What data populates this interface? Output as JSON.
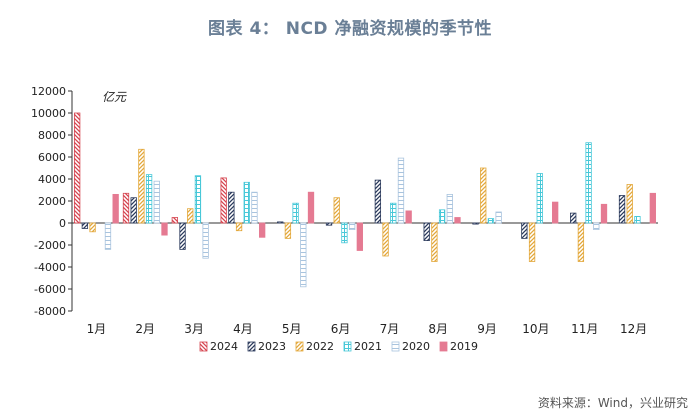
{
  "title": "图表 4：  NCD 净融资规模的季节性",
  "source": "资料来源：Wind，兴业研究",
  "chart_data": {
    "type": "bar",
    "unit_label": "亿元",
    "categories": [
      "1月",
      "2月",
      "3月",
      "4月",
      "5月",
      "6月",
      "7月",
      "8月",
      "9月",
      "10月",
      "11月",
      "12月"
    ],
    "ylim": [
      -8000,
      12000
    ],
    "yticks": [
      -8000,
      -6000,
      -4000,
      -2000,
      0,
      2000,
      4000,
      6000,
      8000,
      10000,
      12000
    ],
    "grid": false,
    "legend_position": "bottom",
    "series": [
      {
        "name": "2024",
        "color": "#d64550",
        "style": "diag-left",
        "values": [
          10000,
          2700,
          500,
          4100,
          null,
          null,
          null,
          null,
          null,
          null,
          null,
          null
        ]
      },
      {
        "name": "2023",
        "color": "#2b3a5c",
        "style": "diag-right",
        "values": [
          -500,
          2300,
          -2400,
          2800,
          100,
          -200,
          3900,
          -1600,
          -100,
          -1400,
          900,
          2500
        ]
      },
      {
        "name": "2022",
        "color": "#e3a83b",
        "style": "diag-right",
        "values": [
          -800,
          6700,
          1300,
          -700,
          -1400,
          2300,
          -3000,
          -3500,
          5000,
          -3500,
          -3500,
          3500
        ]
      },
      {
        "name": "2021",
        "color": "#48c8d8",
        "style": "grid",
        "values": [
          null,
          4400,
          4300,
          3700,
          1800,
          -1800,
          1800,
          1200,
          400,
          4500,
          7300,
          600
        ]
      },
      {
        "name": "2020",
        "color": "#a9c4de",
        "style": "hlines",
        "values": [
          -2400,
          3800,
          -3200,
          2800,
          -5800,
          -600,
          5900,
          2600,
          1000,
          null,
          -600,
          null
        ]
      },
      {
        "name": "2019",
        "color": "#e57a92",
        "style": "solid",
        "values": [
          2600,
          -1100,
          null,
          -1300,
          2800,
          -2500,
          1100,
          500,
          null,
          1900,
          1700,
          2700
        ]
      }
    ]
  }
}
